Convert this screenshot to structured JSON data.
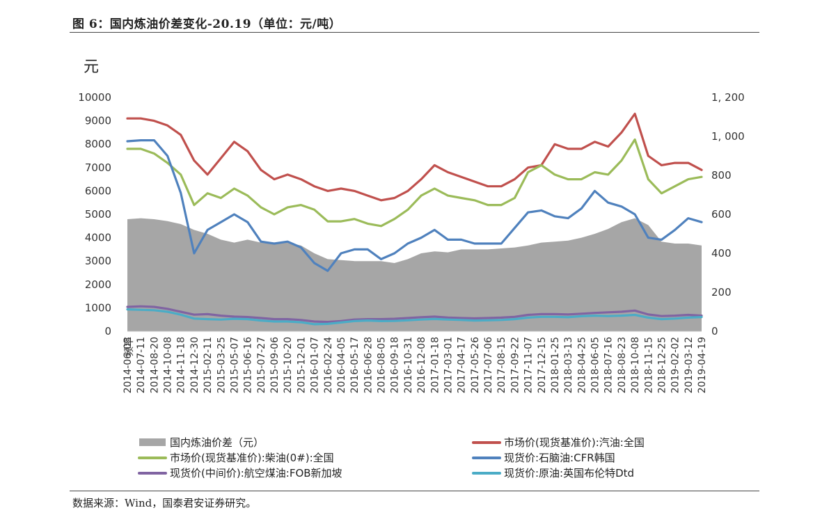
{
  "title": "图 6：国内炼油价差变化-20.19（单位：元/吨）",
  "unit_label": "元",
  "source": "数据来源：Wind，国泰君安证券研究。",
  "chart_data": {
    "type": "line",
    "frequency_label": "频率",
    "x": [
      "2014-06-03",
      "2014-07-11",
      "2014-08-20",
      "2014-10-08",
      "2014-11-18",
      "2014-12-30",
      "2015-02-11",
      "2015-03-25",
      "2015-05-07",
      "2015-06-16",
      "2015-07-27",
      "2015-09-06",
      "2015-10-20",
      "2015-12-01",
      "2016-01-07",
      "2016-02-24",
      "2016-04-05",
      "2016-05-17",
      "2016-06-28",
      "2016-08-05",
      "2016-09-18",
      "2016-10-31",
      "2016-12-08",
      "2017-01-18",
      "2017-03-01",
      "2017-04-17",
      "2017-05-26",
      "2017-07-06",
      "2017-08-15",
      "2017-09-22",
      "2017-11-07",
      "2017-12-15",
      "2018-01-25",
      "2018-03-13",
      "2018-04-25",
      "2018-06-05",
      "2018-07-16",
      "2018-08-23",
      "2018-10-08",
      "2018-11-15",
      "2018-12-25",
      "2019-02-02",
      "2019-03-12",
      "2019-04-19"
    ],
    "y_left_range": [
      0,
      10000
    ],
    "y_left_ticks": [
      "10000",
      "9000",
      "8000",
      "7000",
      "6000",
      "5000",
      "4000",
      "3000",
      "2000",
      "1000",
      "0"
    ],
    "y_right_range": [
      0,
      1200
    ],
    "y_right_ticks": [
      "1, 200",
      "1, 000",
      "800",
      "600",
      "400",
      "200",
      "0"
    ],
    "grid": false,
    "legend_position": "bottom",
    "series": [
      {
        "name": "国内炼油价差（元）",
        "axis": "right",
        "style": "area",
        "color": "#a6a6a6",
        "values": [
          575,
          580,
          575,
          565,
          550,
          520,
          500,
          470,
          455,
          470,
          455,
          450,
          455,
          440,
          400,
          370,
          365,
          360,
          360,
          360,
          350,
          370,
          400,
          410,
          405,
          420,
          420,
          420,
          425,
          430,
          440,
          455,
          460,
          465,
          480,
          500,
          525,
          560,
          580,
          545,
          460,
          450,
          450,
          440
        ]
      },
      {
        "name": "市场价(现货基准价):汽油:全国",
        "axis": "left",
        "style": "line",
        "color": "#c0504d",
        "values": [
          9100,
          9100,
          9000,
          8800,
          8400,
          7300,
          6700,
          7400,
          8100,
          7700,
          6900,
          6500,
          6700,
          6500,
          6200,
          6000,
          6100,
          6000,
          5800,
          5600,
          5700,
          6000,
          6500,
          7100,
          6800,
          6600,
          6400,
          6200,
          6200,
          6500,
          7000,
          7100,
          8000,
          7800,
          7800,
          8100,
          7900,
          8500,
          9300,
          7500,
          7100,
          7200,
          7200,
          6900
        ]
      },
      {
        "name": "市场价(现货基准价):柴油(0#):全国",
        "axis": "left",
        "style": "line",
        "color": "#9bbb59",
        "values": [
          7800,
          7800,
          7600,
          7200,
          6700,
          5400,
          5900,
          5700,
          6100,
          5800,
          5300,
          5000,
          5300,
          5400,
          5200,
          4700,
          4700,
          4800,
          4600,
          4500,
          4800,
          5200,
          5800,
          6100,
          5800,
          5700,
          5600,
          5400,
          5400,
          5700,
          6800,
          7100,
          6700,
          6500,
          6500,
          6800,
          6700,
          7300,
          8200,
          6500,
          5900,
          6200,
          6500,
          6600
        ]
      },
      {
        "name": "现货价:石脑油:CFR韩国",
        "axis": "right",
        "style": "line",
        "color": "#4f81bd",
        "values": [
          975,
          980,
          980,
          900,
          710,
          400,
          520,
          560,
          600,
          560,
          460,
          450,
          460,
          430,
          350,
          310,
          400,
          420,
          420,
          370,
          400,
          450,
          480,
          520,
          470,
          470,
          450,
          450,
          450,
          530,
          610,
          620,
          590,
          580,
          630,
          720,
          660,
          640,
          600,
          480,
          470,
          520,
          580,
          560
        ]
      },
      {
        "name": "现货价(中间价):航空煤油:FOB新加坡",
        "axis": "right",
        "style": "line",
        "color": "#8064a2",
        "values": [
          125,
          128,
          125,
          115,
          100,
          85,
          88,
          80,
          75,
          73,
          68,
          62,
          62,
          58,
          50,
          48,
          52,
          60,
          62,
          62,
          64,
          68,
          72,
          75,
          70,
          68,
          66,
          68,
          70,
          74,
          84,
          88,
          88,
          86,
          90,
          94,
          97,
          100,
          106,
          86,
          78,
          80,
          84,
          80
        ]
      },
      {
        "name": "现货价:原油:英国布伦特Dtd",
        "axis": "right",
        "style": "line",
        "color": "#4bacc6",
        "values": [
          112,
          110,
          108,
          100,
          85,
          65,
          62,
          60,
          64,
          62,
          55,
          50,
          50,
          46,
          36,
          38,
          45,
          52,
          55,
          52,
          53,
          56,
          60,
          63,
          60,
          58,
          55,
          56,
          58,
          62,
          70,
          74,
          74,
          72,
          77,
          80,
          78,
          80,
          84,
          70,
          62,
          65,
          70,
          73
        ]
      }
    ]
  }
}
